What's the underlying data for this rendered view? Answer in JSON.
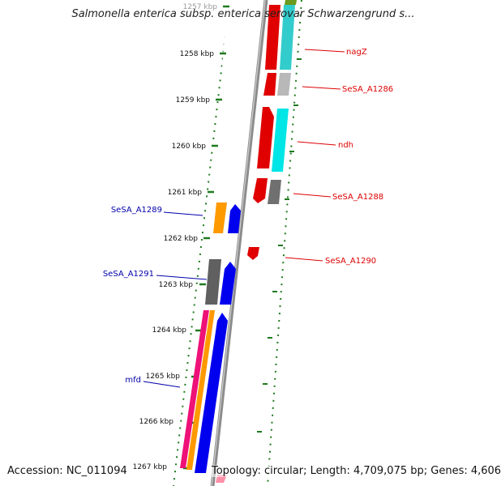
{
  "title": "Salmonella enterica subsp. enterica serovar Schwarzengrund s...",
  "accession_text": "Accession: NC_011094",
  "topology_text": "Topology: circular; Length: 4,709,075 bp; Genes: 4,606",
  "colors": {
    "backbone": "#8c8c8c",
    "tick": "#1f7a1f",
    "forward_label": "#dd0000",
    "reverse_label": "#0000aa"
  },
  "kbp_labels": [
    "1257 kbp",
    "1258 kbp",
    "1259 kbp",
    "1260 kbp",
    "1261 kbp",
    "1262 kbp",
    "1263 kbp",
    "1264 kbp",
    "1265 kbp",
    "1266 kbp",
    "1267 kbp"
  ],
  "gene_labels": [
    {
      "text": "nagZ",
      "strand": "forward"
    },
    {
      "text": "SeSA_A1286",
      "strand": "forward"
    },
    {
      "text": "ndh",
      "strand": "forward"
    },
    {
      "text": "SeSA_A1288",
      "strand": "forward"
    },
    {
      "text": "SeSA_A1290",
      "strand": "forward"
    },
    {
      "text": "SeSA_A1289",
      "strand": "reverse"
    },
    {
      "text": "SeSA_A1291",
      "strand": "reverse"
    },
    {
      "text": "mfd",
      "strand": "reverse"
    }
  ]
}
